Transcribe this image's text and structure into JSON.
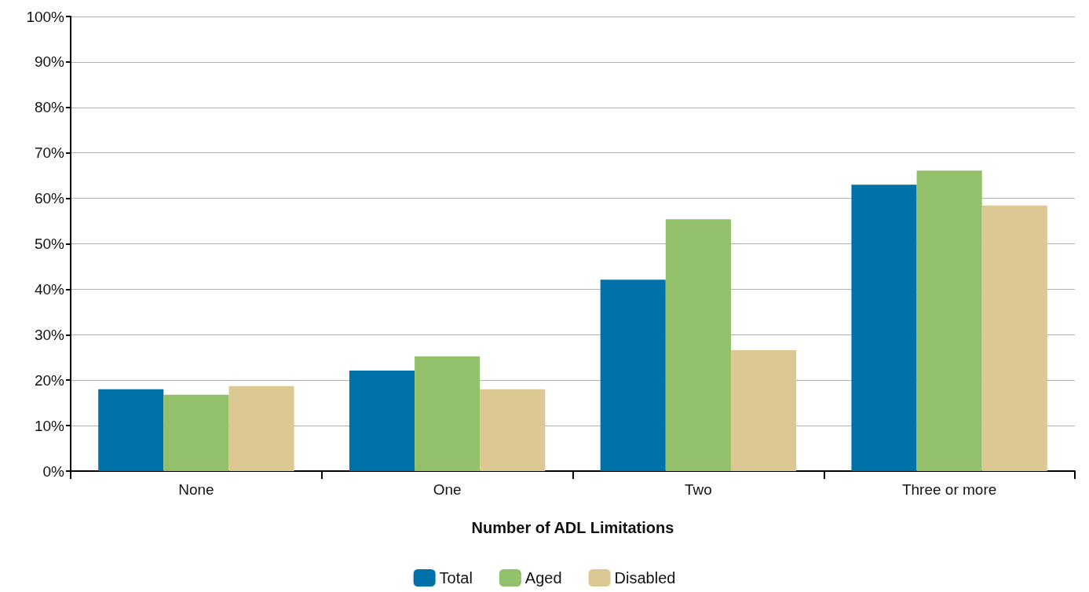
{
  "chart_data": {
    "type": "bar",
    "xlabel": "Number of ADL Limitations",
    "categories": [
      "None",
      "One",
      "Two",
      "Three or more"
    ],
    "series": [
      {
        "name": "Total",
        "color": "#0072a9",
        "values": [
          18,
          22.1,
          42.1,
          63
        ]
      },
      {
        "name": "Aged",
        "color": "#93c06b",
        "values": [
          16.8,
          25.2,
          55.4,
          66.1
        ]
      },
      {
        "name": "Disabled",
        "color": "#dcc892",
        "values": [
          18.7,
          18,
          26.6,
          58.4
        ]
      }
    ],
    "ylim": [
      0,
      100
    ],
    "yticks": [
      {
        "value": 0,
        "label": "0%"
      },
      {
        "value": 10,
        "label": "10%"
      },
      {
        "value": 20,
        "label": "20%"
      },
      {
        "value": 30,
        "label": "30%"
      },
      {
        "value": 40,
        "label": "40%"
      },
      {
        "value": 50,
        "label": "50%"
      },
      {
        "value": 60,
        "label": "60%"
      },
      {
        "value": 70,
        "label": "70%"
      },
      {
        "value": 80,
        "label": "80%"
      },
      {
        "value": 90,
        "label": "90%"
      },
      {
        "value": 100,
        "label": "100%"
      }
    ],
    "grid": "y",
    "legend": "bottom"
  }
}
